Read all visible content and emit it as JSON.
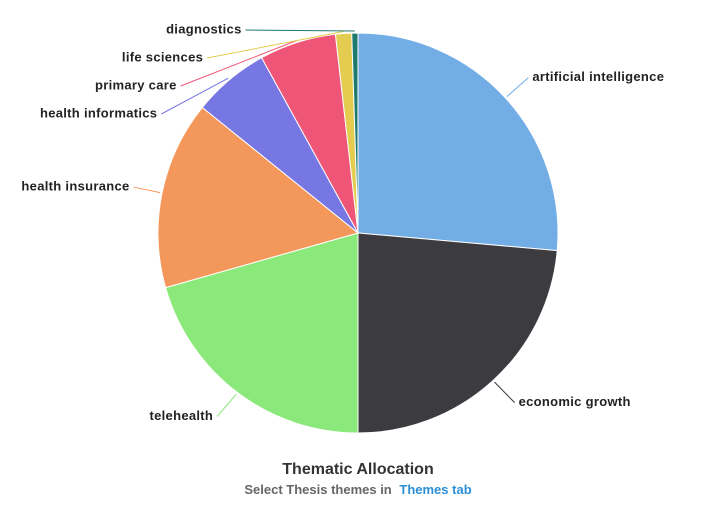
{
  "chart_data": {
    "type": "pie",
    "title": "Thematic Allocation",
    "subtitle": "Select Thesis themes in",
    "subtitle_link": "Themes tab",
    "categories": [
      "artificial intelligence",
      "economic growth",
      "telehealth",
      "health insurance",
      "health informatics",
      "primary care",
      "life sciences",
      "diagnostics"
    ],
    "values": [
      26.4,
      23.6,
      20.6,
      15.2,
      6.2,
      6.2,
      1.3,
      0.5
    ],
    "colors": [
      "#72ade6",
      "#3c3b40",
      "#8be87a",
      "#f4975a",
      "#7677e3",
      "#ef5576",
      "#e3cc50",
      "#1e7a6d"
    ]
  }
}
